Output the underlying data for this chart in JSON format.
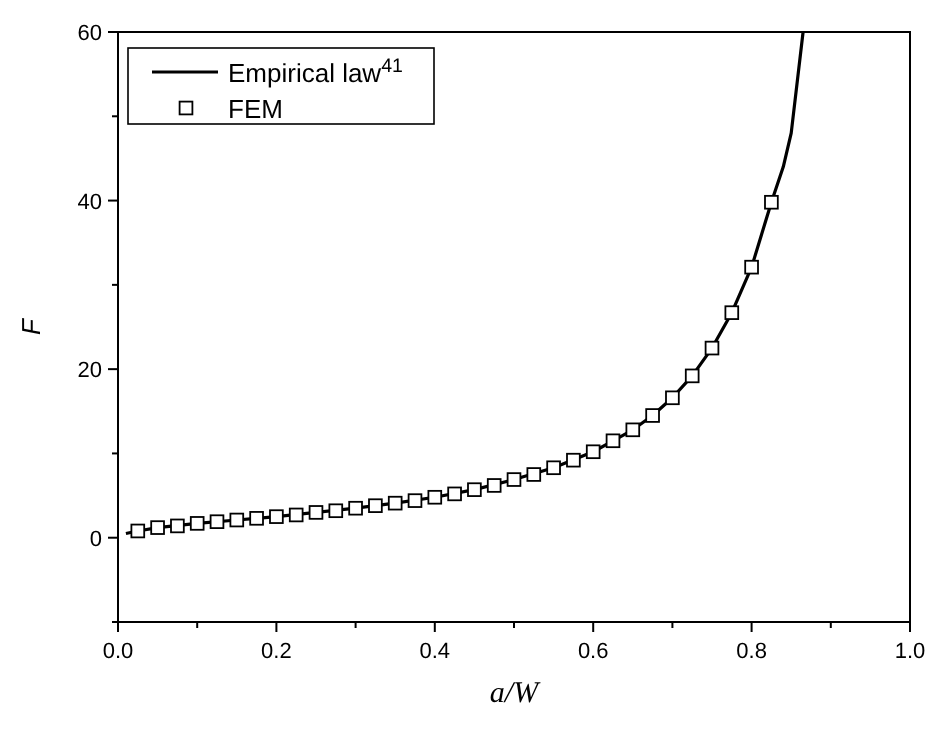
{
  "chart_data": {
    "type": "scatter",
    "xlabel": "a/W",
    "ylabel": "F",
    "xlim": [
      0,
      1
    ],
    "ylim": [
      -10,
      60
    ],
    "xticks": [
      {
        "value": 0,
        "label": "0.0"
      },
      {
        "value": 0.1,
        "label": null
      },
      {
        "value": 0.2,
        "label": "0.2"
      },
      {
        "value": 0.3,
        "label": null
      },
      {
        "value": 0.4,
        "label": "0.4"
      },
      {
        "value": 0.5,
        "label": null
      },
      {
        "value": 0.6,
        "label": "0.6"
      },
      {
        "value": 0.7,
        "label": null
      },
      {
        "value": 0.8,
        "label": "0.8"
      },
      {
        "value": 0.9,
        "label": null
      },
      {
        "value": 1,
        "label": "1.0"
      }
    ],
    "yticks": [
      {
        "value": -10,
        "label": null
      },
      0,
      {
        "value": 10,
        "label": null
      },
      20,
      {
        "value": 30,
        "label": null
      },
      40,
      {
        "value": 50,
        "label": null
      },
      60
    ],
    "legend": "top left",
    "grid": false,
    "series": [
      {
        "name": "Empirical law$^{41}$",
        "type": "line",
        "color": "#000000",
        "marker": "none",
        "line_style": "solid",
        "x": [
          0.01,
          0.025,
          0.05,
          0.1,
          0.15,
          0.2,
          0.25,
          0.3,
          0.35,
          0.4,
          0.45,
          0.5,
          0.55,
          0.6,
          0.625,
          0.65,
          0.675,
          0.7,
          0.725,
          0.75,
          0.775,
          0.8,
          0.825,
          0.84,
          0.85,
          0.865
        ],
        "values": [
          0.5,
          0.8,
          1.2,
          1.7,
          2.1,
          2.5,
          3.0,
          3.5,
          4.1,
          4.8,
          5.7,
          6.9,
          8.3,
          10.2,
          11.5,
          12.8,
          14.5,
          16.6,
          19.2,
          22.5,
          26.7,
          32.1,
          39.8,
          44,
          48,
          60
        ]
      },
      {
        "name": "FEM",
        "type": "scatter",
        "color": "#000000",
        "marker": "square",
        "x": [
          0.025,
          0.05,
          0.075,
          0.1,
          0.125,
          0.15,
          0.175,
          0.2,
          0.225,
          0.25,
          0.275,
          0.3,
          0.325,
          0.35,
          0.375,
          0.4,
          0.425,
          0.45,
          0.475,
          0.5,
          0.525,
          0.55,
          0.575,
          0.6,
          0.625,
          0.65,
          0.675,
          0.7,
          0.725,
          0.75,
          0.775,
          0.8,
          0.825
        ],
        "values": [
          0.8,
          1.2,
          1.4,
          1.7,
          1.9,
          2.1,
          2.3,
          2.5,
          2.7,
          3.0,
          3.2,
          3.5,
          3.8,
          4.1,
          4.4,
          4.8,
          5.2,
          5.7,
          6.2,
          6.9,
          7.5,
          8.3,
          9.2,
          10.2,
          11.5,
          12.8,
          14.5,
          16.6,
          19.2,
          22.5,
          26.7,
          32.1,
          39.8
        ]
      }
    ]
  }
}
